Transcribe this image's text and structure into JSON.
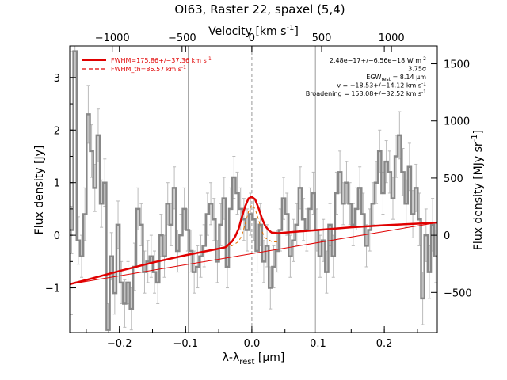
{
  "chart_data": {
    "type": "line",
    "title": "OI63, Raster 22, spaxel (5,4)",
    "xlabel_main": "λ-λ",
    "xlabel_sub": "rest",
    "xlabel_unit": " [μm]",
    "ylabel_left": "Flux density [Jy]",
    "ylabel_right": "Flux density [MJy sr",
    "ylabel_right_sup": "-1",
    "ylabel_right_end": "]",
    "xlabel_top": "Velocity [km s",
    "xlabel_top_sup": "-1",
    "xlabel_top_end": "]",
    "xlim": [
      -0.275,
      0.28
    ],
    "ylim": [
      -1.85,
      3.6
    ],
    "x_ticks": [
      -0.2,
      -0.1,
      0.0,
      0.1,
      0.2
    ],
    "x_tick_labels": [
      "−0.2",
      "−0.1",
      "0.0",
      "0.1",
      "0.2"
    ],
    "y_ticks": [
      -1,
      0,
      1,
      2,
      3
    ],
    "y_tick_labels": [
      "−1",
      "0",
      "1",
      "2",
      "3"
    ],
    "top_ticks_kms": [
      -1000,
      -500,
      0,
      500,
      1000
    ],
    "top_tick_labels": [
      "−1000",
      "−500",
      "0",
      "500",
      "1000"
    ],
    "right_ticks_mjy": [
      -500,
      0,
      500,
      1000,
      1500
    ],
    "right_tick_labels": [
      "−500",
      "0",
      "500",
      "1000",
      "1500"
    ],
    "vertical_lines_um": [
      -0.096,
      0.0,
      0.096
    ],
    "legend": [
      {
        "label": "FWHM=175.86+/−37.36 km s",
        "sup": "-1",
        "style": "solid",
        "color": "#e00000"
      },
      {
        "label": "FWHM_th=86.57 km s",
        "sup": "-1",
        "style": "dashed",
        "color": "#e00000"
      }
    ],
    "annotations": [
      {
        "text": "2.48e−17+/−6.56e−18 W m",
        "sup": "-2"
      },
      {
        "text": "3.75σ",
        "sup": ""
      },
      {
        "text": "EGW",
        "sub": "rest",
        "tail": " = 8.14 μm"
      },
      {
        "text": "v = −18.53+/−14.12 km s",
        "sup": "-1"
      },
      {
        "text": "Broadening = 153.08+/−32.52 km s",
        "sup": "-1"
      }
    ],
    "series": [
      {
        "kind": "data",
        "color": "#888888",
        "x": [
          -0.272,
          -0.267,
          -0.262,
          -0.257,
          -0.252,
          -0.247,
          -0.242,
          -0.237,
          -0.232,
          -0.227,
          -0.222,
          -0.217,
          -0.212,
          -0.207,
          -0.202,
          -0.197,
          -0.192,
          -0.187,
          -0.182,
          -0.177,
          -0.172,
          -0.167,
          -0.162,
          -0.157,
          -0.152,
          -0.147,
          -0.142,
          -0.137,
          -0.132,
          -0.127,
          -0.122,
          -0.117,
          -0.112,
          -0.107,
          -0.102,
          -0.097,
          -0.092,
          -0.087,
          -0.082,
          -0.077,
          -0.072,
          -0.067,
          -0.062,
          -0.057,
          -0.052,
          -0.047,
          -0.042,
          -0.037,
          -0.032,
          -0.027,
          -0.022,
          -0.017,
          -0.012,
          -0.007,
          -0.002,
          0.003,
          0.008,
          0.013,
          0.018,
          0.023,
          0.028,
          0.033,
          0.038,
          0.043,
          0.048,
          0.053,
          0.058,
          0.063,
          0.068,
          0.073,
          0.078,
          0.083,
          0.088,
          0.093,
          0.098,
          0.103,
          0.108,
          0.113,
          0.118,
          0.123,
          0.128,
          0.133,
          0.138,
          0.143,
          0.148,
          0.153,
          0.158,
          0.163,
          0.168,
          0.173,
          0.178,
          0.183,
          0.188,
          0.193,
          0.198,
          0.203,
          0.208,
          0.213,
          0.218,
          0.223,
          0.228,
          0.233,
          0.238,
          0.243,
          0.248,
          0.253,
          0.258,
          0.263,
          0.268,
          0.273,
          0.278
        ],
        "y": [
          0.1,
          3.5,
          -0.1,
          -0.4,
          0.4,
          2.3,
          1.6,
          0.9,
          1.9,
          0.6,
          1.0,
          -1.8,
          -0.4,
          -1.1,
          0.2,
          -0.9,
          -1.3,
          -0.9,
          -1.4,
          -0.6,
          0.5,
          0.2,
          -0.7,
          -0.5,
          -0.4,
          -0.7,
          -0.9,
          0.0,
          -0.4,
          0.6,
          0.2,
          0.9,
          -0.3,
          0.0,
          0.5,
          0.1,
          -0.3,
          -0.7,
          -0.6,
          -0.4,
          -0.2,
          0.4,
          0.6,
          0.3,
          -0.5,
          0.2,
          0.7,
          -0.6,
          0.5,
          1.1,
          0.8,
          0.5,
          0.3,
          0.1,
          0.4,
          0.3,
          -0.3,
          0.2,
          -0.5,
          -0.2,
          -1.0,
          -0.6,
          -0.3,
          0.1,
          0.7,
          0.4,
          -0.4,
          -0.1,
          0.2,
          0.9,
          0.3,
          0.1,
          0.5,
          0.8,
          0.1,
          -0.4,
          -0.1,
          -0.7,
          0.2,
          -0.4,
          0.8,
          1.2,
          0.6,
          1.0,
          0.6,
          0.2,
          0.5,
          0.9,
          0.4,
          -0.2,
          0.1,
          0.6,
          1.0,
          1.6,
          0.8,
          1.4,
          1.2,
          0.7,
          1.5,
          1.9,
          1.2,
          0.6,
          1.3,
          0.4,
          0.9,
          0.3,
          -1.2,
          0.0,
          -0.7,
          0.2,
          -0.4
        ],
        "err": [
          0.45,
          0.5,
          0.45,
          0.4,
          0.5,
          0.55,
          0.5,
          0.45,
          0.5,
          0.45,
          0.45,
          0.5,
          0.45,
          0.4,
          0.45,
          0.4,
          0.45,
          0.4,
          0.4,
          0.45,
          0.4,
          0.4,
          0.4,
          0.4,
          0.4,
          0.4,
          0.4,
          0.4,
          0.4,
          0.4,
          0.4,
          0.4,
          0.4,
          0.4,
          0.4,
          0.4,
          0.4,
          0.4,
          0.4,
          0.4,
          0.4,
          0.4,
          0.4,
          0.4,
          0.4,
          0.4,
          0.4,
          0.4,
          0.4,
          0.4,
          0.4,
          0.4,
          0.4,
          0.4,
          0.4,
          0.4,
          0.4,
          0.4,
          0.4,
          0.4,
          0.4,
          0.4,
          0.4,
          0.4,
          0.4,
          0.4,
          0.4,
          0.4,
          0.4,
          0.4,
          0.4,
          0.4,
          0.4,
          0.4,
          0.4,
          0.4,
          0.4,
          0.4,
          0.4,
          0.4,
          0.4,
          0.4,
          0.4,
          0.4,
          0.4,
          0.4,
          0.4,
          0.4,
          0.4,
          0.4,
          0.4,
          0.4,
          0.4,
          0.4,
          0.4,
          0.4,
          0.4,
          0.4,
          0.4,
          0.45,
          0.45,
          0.45,
          0.45,
          0.45,
          0.45,
          0.5,
          0.5,
          0.5,
          0.5,
          0.5,
          0.5
        ]
      },
      {
        "kind": "fit",
        "color": "#e00000",
        "x": [
          -0.275,
          -0.25,
          -0.2,
          -0.15,
          -0.1,
          -0.06,
          -0.04,
          -0.03,
          -0.025,
          -0.02,
          -0.015,
          -0.01,
          -0.005,
          0.0,
          0.005,
          0.01,
          0.015,
          0.02,
          0.025,
          0.03,
          0.04,
          0.06,
          0.1,
          0.15,
          0.2,
          0.25,
          0.28
        ],
        "y": [
          -0.93,
          -0.85,
          -0.68,
          -0.52,
          -0.38,
          -0.28,
          -0.23,
          -0.12,
          -0.02,
          0.12,
          0.35,
          0.55,
          0.7,
          0.73,
          0.68,
          0.52,
          0.33,
          0.18,
          0.1,
          0.05,
          0.04,
          0.06,
          0.1,
          0.15,
          0.19,
          0.22,
          0.24
        ]
      },
      {
        "kind": "thermal",
        "color": "#e07000",
        "x": [
          -0.04,
          -0.03,
          -0.02,
          -0.015,
          -0.01,
          -0.005,
          0.0,
          0.005,
          0.01,
          0.015,
          0.02,
          0.03,
          0.04
        ],
        "y": [
          -0.22,
          -0.2,
          -0.12,
          0.0,
          0.22,
          0.45,
          0.58,
          0.5,
          0.3,
          0.08,
          -0.05,
          -0.12,
          -0.13
        ]
      },
      {
        "kind": "continuum",
        "color": "#e00000",
        "x": [
          -0.275,
          0.28
        ],
        "y": [
          -0.93,
          0.24
        ]
      }
    ]
  }
}
